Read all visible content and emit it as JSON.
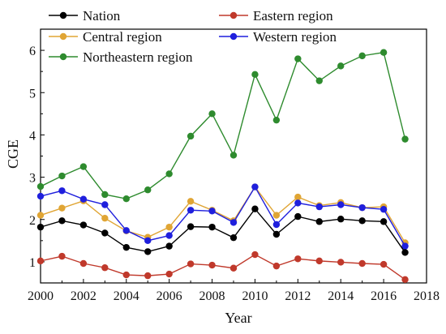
{
  "chart_data": {
    "type": "line",
    "xlabel": "Year",
    "ylabel": "CGE",
    "xlim": [
      2000,
      2018
    ],
    "ylim": [
      0.5,
      6.5
    ],
    "x_ticks": [
      "2000",
      "2002",
      "2004",
      "2006",
      "2008",
      "2010",
      "2012",
      "2014",
      "2016",
      "2018"
    ],
    "y_ticks": [
      "1",
      "2",
      "3",
      "4",
      "5",
      "6"
    ],
    "grid": false,
    "legend_position": "top",
    "x": [
      2000,
      2001,
      2002,
      2003,
      2004,
      2005,
      2006,
      2007,
      2008,
      2009,
      2010,
      2011,
      2012,
      2013,
      2014,
      2015,
      2016,
      2017
    ],
    "series": [
      {
        "name": "Northeastern region",
        "color": "#2e8b2e",
        "values": [
          2.78,
          3.03,
          3.25,
          2.59,
          2.49,
          2.7,
          3.08,
          3.97,
          4.5,
          3.52,
          5.43,
          4.35,
          5.8,
          5.28,
          5.63,
          5.87,
          5.95,
          3.9
        ]
      },
      {
        "name": "Central region",
        "color": "#e0a534",
        "values": [
          2.1,
          2.27,
          2.44,
          2.03,
          1.73,
          1.58,
          1.82,
          2.43,
          2.22,
          1.97,
          2.77,
          2.1,
          2.53,
          2.33,
          2.4,
          2.28,
          2.3,
          1.45
        ]
      },
      {
        "name": "Western region",
        "color": "#1f1fdd",
        "values": [
          2.55,
          2.68,
          2.48,
          2.35,
          1.74,
          1.5,
          1.62,
          2.22,
          2.2,
          1.93,
          2.77,
          1.88,
          2.39,
          2.3,
          2.35,
          2.28,
          2.24,
          1.37
        ]
      },
      {
        "name": "Nation",
        "color": "#000000",
        "values": [
          1.82,
          1.97,
          1.87,
          1.68,
          1.34,
          1.24,
          1.37,
          1.83,
          1.82,
          1.57,
          2.25,
          1.65,
          2.07,
          1.95,
          2.01,
          1.97,
          1.95,
          1.22
        ]
      },
      {
        "name": "Eastern region",
        "color": "#c0392b",
        "values": [
          1.02,
          1.13,
          0.96,
          0.86,
          0.69,
          0.67,
          0.71,
          0.95,
          0.92,
          0.85,
          1.17,
          0.9,
          1.07,
          1.02,
          0.99,
          0.96,
          0.94,
          0.58
        ]
      }
    ],
    "legend": [
      {
        "label": "Nation",
        "color": "#000000"
      },
      {
        "label": "Eastern region",
        "color": "#c0392b"
      },
      {
        "label": "Central region",
        "color": "#e0a534"
      },
      {
        "label": "Western region",
        "color": "#1f1fdd"
      },
      {
        "label": "Northeastern region",
        "color": "#2e8b2e"
      }
    ]
  }
}
